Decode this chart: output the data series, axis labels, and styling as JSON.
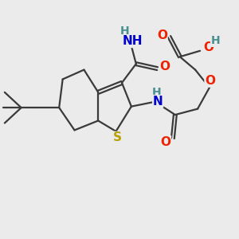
{
  "background_color": "#ebebeb",
  "bond_color": "#3a3a3a",
  "bond_width": 1.6,
  "atoms": {
    "S": {
      "color": "#b8a000",
      "fontsize": 11,
      "fontweight": "bold"
    },
    "O": {
      "color": "#ee2200",
      "fontsize": 11,
      "fontweight": "bold"
    },
    "N": {
      "color": "#0000cc",
      "fontsize": 11,
      "fontweight": "bold"
    },
    "H": {
      "color": "#4a9090",
      "fontsize": 10,
      "fontweight": "bold"
    }
  },
  "fig_width": 3.0,
  "fig_height": 3.0,
  "dpi": 100
}
